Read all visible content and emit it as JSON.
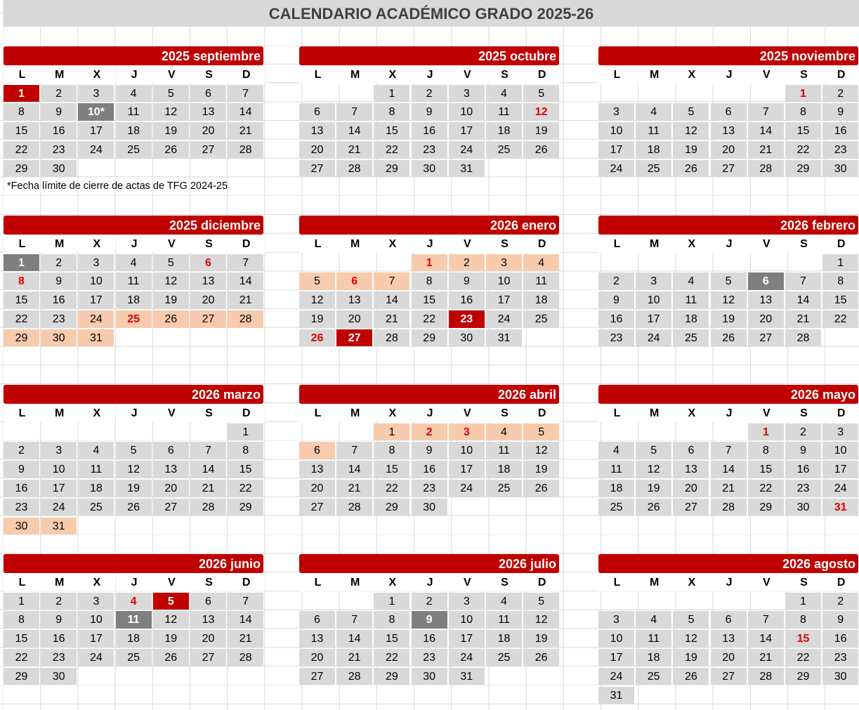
{
  "title": "CALENDARIO ACADÉMICO GRADO 2025-26",
  "weekdays": [
    "L",
    "M",
    "X",
    "J",
    "V",
    "S",
    "D"
  ],
  "footnote": "*Fecha límite de cierre de actas de TFG 2024-25",
  "colors": {
    "header_red": "#c00000",
    "day_gray": "#d9d9d9",
    "highlight_dark": "#7f7f7f",
    "vacation_peach": "#f8cbad",
    "holiday_text": "#e00000"
  },
  "legend_styles": {
    "r": "red filled",
    "d": "dark gray filled",
    "t": "red bold text",
    "v": "vacation period",
    "vt": "vacation period with red bold text"
  },
  "months": [
    {
      "name": "2025 septiembre",
      "weeks": [
        [
          "1",
          "2",
          "3",
          "4",
          "5",
          "6",
          "7"
        ],
        [
          "8",
          "9",
          "10*",
          "11",
          "12",
          "13",
          "14"
        ],
        [
          "15",
          "16",
          "17",
          "18",
          "19",
          "20",
          "21"
        ],
        [
          "22",
          "23",
          "24",
          "25",
          "26",
          "27",
          "28"
        ],
        [
          "29",
          "30",
          "",
          "",
          "",
          "",
          ""
        ]
      ],
      "styles": {
        "1": "r",
        "10*": "d"
      }
    },
    {
      "name": "2025 octubre",
      "weeks": [
        [
          "",
          "",
          "1",
          "2",
          "3",
          "4",
          "5"
        ],
        [
          "6",
          "7",
          "8",
          "9",
          "10",
          "11",
          "12"
        ],
        [
          "13",
          "14",
          "15",
          "16",
          "17",
          "18",
          "19"
        ],
        [
          "20",
          "21",
          "22",
          "23",
          "24",
          "25",
          "26"
        ],
        [
          "27",
          "28",
          "29",
          "30",
          "31",
          "",
          ""
        ]
      ],
      "styles": {
        "12": "t"
      }
    },
    {
      "name": "2025 noviembre",
      "weeks": [
        [
          "",
          "",
          "",
          "",
          "",
          "1",
          "2"
        ],
        [
          "3",
          "4",
          "5",
          "6",
          "7",
          "8",
          "9"
        ],
        [
          "10",
          "11",
          "12",
          "13",
          "14",
          "15",
          "16"
        ],
        [
          "17",
          "18",
          "19",
          "20",
          "21",
          "22",
          "23"
        ],
        [
          "24",
          "25",
          "26",
          "27",
          "28",
          "29",
          "30"
        ]
      ],
      "styles": {
        "1": "t"
      }
    },
    {
      "name": "2025 diciembre",
      "weeks": [
        [
          "1",
          "2",
          "3",
          "4",
          "5",
          "6",
          "7"
        ],
        [
          "8",
          "9",
          "10",
          "11",
          "12",
          "13",
          "14"
        ],
        [
          "15",
          "16",
          "17",
          "18",
          "19",
          "20",
          "21"
        ],
        [
          "22",
          "23",
          "24",
          "25",
          "26",
          "27",
          "28"
        ],
        [
          "29",
          "30",
          "31",
          "",
          "",
          "",
          ""
        ]
      ],
      "styles": {
        "1": "d",
        "6": "t",
        "8": "t",
        "24": "v",
        "25": "vt",
        "26": "v",
        "27": "v",
        "28": "v",
        "29": "v",
        "30": "v",
        "31": "v"
      }
    },
    {
      "name": "2026 enero",
      "weeks": [
        [
          "",
          "",
          "",
          "1",
          "2",
          "3",
          "4"
        ],
        [
          "5",
          "6",
          "7",
          "8",
          "9",
          "10",
          "11"
        ],
        [
          "12",
          "13",
          "14",
          "15",
          "16",
          "17",
          "18"
        ],
        [
          "19",
          "20",
          "21",
          "22",
          "23",
          "24",
          "25"
        ],
        [
          "26",
          "27",
          "28",
          "29",
          "30",
          "31",
          ""
        ]
      ],
      "styles": {
        "1": "vt",
        "2": "v",
        "3": "v",
        "4": "v",
        "5": "v",
        "6": "vt",
        "7": "v",
        "23": "r",
        "26": "t",
        "27": "r"
      }
    },
    {
      "name": "2026 febrero",
      "weeks": [
        [
          "",
          "",
          "",
          "",
          "",
          "",
          "1"
        ],
        [
          "2",
          "3",
          "4",
          "5",
          "6",
          "7",
          "8"
        ],
        [
          "9",
          "10",
          "11",
          "12",
          "13",
          "14",
          "15"
        ],
        [
          "16",
          "17",
          "18",
          "19",
          "20",
          "21",
          "22"
        ],
        [
          "23",
          "24",
          "25",
          "26",
          "27",
          "28",
          ""
        ]
      ],
      "styles": {
        "6": "d"
      }
    },
    {
      "name": "2026 marzo",
      "weeks": [
        [
          "",
          "",
          "",
          "",
          "",
          "",
          "1"
        ],
        [
          "2",
          "3",
          "4",
          "5",
          "6",
          "7",
          "8"
        ],
        [
          "9",
          "10",
          "11",
          "12",
          "13",
          "14",
          "15"
        ],
        [
          "16",
          "17",
          "18",
          "19",
          "20",
          "21",
          "22"
        ],
        [
          "23",
          "24",
          "25",
          "26",
          "27",
          "28",
          "29"
        ],
        [
          "30",
          "31",
          "",
          "",
          "",
          "",
          ""
        ]
      ],
      "styles": {
        "30": "v",
        "31": "v"
      }
    },
    {
      "name": "2026 abril",
      "weeks": [
        [
          "",
          "",
          "1",
          "2",
          "3",
          "4",
          "5"
        ],
        [
          "6",
          "7",
          "8",
          "9",
          "10",
          "11",
          "12"
        ],
        [
          "13",
          "14",
          "15",
          "16",
          "17",
          "18",
          "19"
        ],
        [
          "20",
          "21",
          "22",
          "23",
          "24",
          "25",
          "26"
        ],
        [
          "27",
          "28",
          "29",
          "30",
          "",
          "",
          ""
        ]
      ],
      "styles": {
        "1": "v",
        "2": "vt",
        "3": "vt",
        "4": "v",
        "5": "v",
        "6": "v"
      }
    },
    {
      "name": "2026 mayo",
      "weeks": [
        [
          "",
          "",
          "",
          "",
          "1",
          "2",
          "3"
        ],
        [
          "4",
          "5",
          "6",
          "7",
          "8",
          "9",
          "10"
        ],
        [
          "11",
          "12",
          "13",
          "14",
          "15",
          "16",
          "17"
        ],
        [
          "18",
          "19",
          "20",
          "21",
          "22",
          "23",
          "24"
        ],
        [
          "25",
          "26",
          "27",
          "28",
          "29",
          "30",
          "31"
        ]
      ],
      "styles": {
        "1": "t",
        "31": "t"
      }
    },
    {
      "name": "2026 junio",
      "weeks": [
        [
          "1",
          "2",
          "3",
          "4",
          "5",
          "6",
          "7"
        ],
        [
          "8",
          "9",
          "10",
          "11",
          "12",
          "13",
          "14"
        ],
        [
          "15",
          "16",
          "17",
          "18",
          "19",
          "20",
          "21"
        ],
        [
          "22",
          "23",
          "24",
          "25",
          "26",
          "27",
          "28"
        ],
        [
          "29",
          "30",
          "",
          "",
          "",
          "",
          ""
        ]
      ],
      "styles": {
        "4": "t",
        "5": "r",
        "11": "d"
      }
    },
    {
      "name": "2026 julio",
      "weeks": [
        [
          "",
          "",
          "1",
          "2",
          "3",
          "4",
          "5"
        ],
        [
          "6",
          "7",
          "8",
          "9",
          "10",
          "11",
          "12"
        ],
        [
          "13",
          "14",
          "15",
          "16",
          "17",
          "18",
          "19"
        ],
        [
          "20",
          "21",
          "22",
          "23",
          "24",
          "25",
          "26"
        ],
        [
          "27",
          "28",
          "29",
          "30",
          "31",
          "",
          ""
        ]
      ],
      "styles": {
        "9": "d"
      }
    },
    {
      "name": "2026 agosto",
      "weeks": [
        [
          "",
          "",
          "",
          "",
          "",
          "1",
          "2"
        ],
        [
          "3",
          "4",
          "5",
          "6",
          "7",
          "8",
          "9"
        ],
        [
          "10",
          "11",
          "12",
          "13",
          "14",
          "15",
          "16"
        ],
        [
          "17",
          "18",
          "19",
          "20",
          "21",
          "22",
          "23"
        ],
        [
          "24",
          "25",
          "26",
          "27",
          "28",
          "29",
          "30"
        ],
        [
          "31",
          "",
          "",
          "",
          "",
          "",
          ""
        ]
      ],
      "styles": {
        "15": "t"
      }
    }
  ]
}
